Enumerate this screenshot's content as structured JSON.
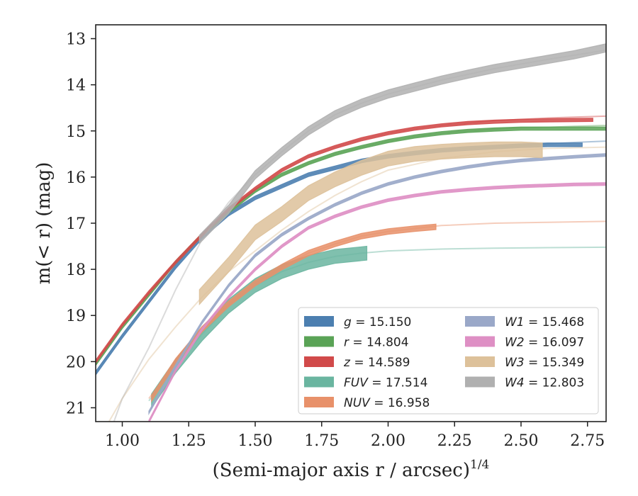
{
  "chart_data": {
    "type": "line",
    "title": "",
    "xlabel": "(Semi-major axis r / arcsec)",
    "xlabel_power": "1/4",
    "ylabel": "m(< r) (mag)",
    "xlim": [
      0.9,
      2.82
    ],
    "ylim": [
      21.3,
      12.7
    ],
    "y_inverted": true,
    "grid": false,
    "legend_position": "lower-right",
    "x_ticks": [
      "1.00",
      "1.25",
      "1.50",
      "1.75",
      "2.00",
      "2.25",
      "2.50",
      "2.75"
    ],
    "y_ticks": [
      "13",
      "14",
      "15",
      "16",
      "17",
      "18",
      "19",
      "20",
      "21"
    ],
    "series": [
      {
        "name": "g = 15.150",
        "legend_name": "g",
        "legend_value": "= 15.150",
        "color": "#4c7fb0",
        "fit_x": [
          0.9,
          1.0,
          1.1,
          1.2,
          1.3,
          1.4,
          1.5,
          1.6,
          1.7,
          1.8,
          1.9,
          2.0,
          2.1,
          2.2,
          2.3,
          2.4,
          2.5,
          2.6,
          2.7,
          2.82
        ],
        "fit_y": [
          20.25,
          19.45,
          18.7,
          17.95,
          17.3,
          16.8,
          16.45,
          16.2,
          15.95,
          15.8,
          15.65,
          15.55,
          15.48,
          15.42,
          15.38,
          15.35,
          15.32,
          15.28,
          15.25,
          15.22
        ],
        "data_x": [
          0.9,
          1.0,
          1.1,
          1.2,
          1.3,
          1.4,
          1.5,
          1.6,
          1.7,
          1.8,
          1.9,
          2.0,
          2.1,
          2.2,
          2.3,
          2.4,
          2.5,
          2.6,
          2.73
        ],
        "data_y": [
          20.25,
          19.45,
          18.7,
          17.95,
          17.3,
          16.8,
          16.45,
          16.2,
          15.95,
          15.8,
          15.65,
          15.55,
          15.48,
          15.42,
          15.38,
          15.35,
          15.32,
          15.3,
          15.3
        ],
        "band_width": 0.08
      },
      {
        "name": "r = 14.804",
        "legend_name": "r",
        "legend_value": "= 14.804",
        "color": "#5aa356",
        "fit_x": [
          0.9,
          1.0,
          1.1,
          1.2,
          1.3,
          1.4,
          1.5,
          1.6,
          1.7,
          1.8,
          1.9,
          2.0,
          2.1,
          2.2,
          2.3,
          2.4,
          2.5,
          2.6,
          2.7,
          2.82
        ],
        "fit_y": [
          20.05,
          19.25,
          18.55,
          17.85,
          17.25,
          16.75,
          16.3,
          15.95,
          15.7,
          15.5,
          15.35,
          15.22,
          15.12,
          15.05,
          15.0,
          14.96,
          14.93,
          14.92,
          14.9,
          14.88
        ],
        "data_x": [
          0.9,
          1.0,
          1.1,
          1.2,
          1.3,
          1.4,
          1.5,
          1.6,
          1.7,
          1.8,
          1.9,
          2.0,
          2.1,
          2.2,
          2.3,
          2.4,
          2.5,
          2.6,
          2.7,
          2.82
        ],
        "data_y": [
          20.05,
          19.25,
          18.55,
          17.85,
          17.25,
          16.75,
          16.3,
          15.95,
          15.7,
          15.5,
          15.35,
          15.22,
          15.12,
          15.05,
          15.0,
          14.97,
          14.95,
          14.95,
          14.95,
          14.95
        ],
        "band_width": 0.07
      },
      {
        "name": "z = 14.589",
        "legend_name": "z",
        "legend_value": "= 14.589",
        "color": "#d14a4a",
        "fit_x": [
          0.9,
          1.0,
          1.1,
          1.2,
          1.3,
          1.4,
          1.5,
          1.6,
          1.7,
          1.8,
          1.9,
          2.0,
          2.1,
          2.2,
          2.3,
          2.4,
          2.5,
          2.6,
          2.7,
          2.82
        ],
        "fit_y": [
          20.0,
          19.2,
          18.5,
          17.85,
          17.25,
          16.7,
          16.25,
          15.85,
          15.55,
          15.35,
          15.18,
          15.05,
          14.95,
          14.88,
          14.83,
          14.78,
          14.75,
          14.72,
          14.7,
          14.68
        ],
        "data_x": [
          0.9,
          1.0,
          1.1,
          1.2,
          1.3,
          1.4,
          1.5,
          1.6,
          1.7,
          1.8,
          1.9,
          2.0,
          2.1,
          2.2,
          2.3,
          2.4,
          2.5,
          2.6,
          2.77
        ],
        "data_y": [
          20.0,
          19.2,
          18.5,
          17.85,
          17.25,
          16.7,
          16.25,
          15.85,
          15.55,
          15.35,
          15.18,
          15.05,
          14.95,
          14.88,
          14.83,
          14.8,
          14.78,
          14.77,
          14.76
        ],
        "band_width": 0.07
      },
      {
        "name": "FUV = 17.514",
        "legend_name": "FUV",
        "legend_value": "= 17.514",
        "color": "#6ab5a0",
        "fit_x": [
          1.1,
          1.2,
          1.3,
          1.4,
          1.5,
          1.6,
          1.7,
          1.8,
          1.9,
          2.0,
          2.2,
          2.4,
          2.6,
          2.82
        ],
        "fit_y": [
          20.85,
          20.1,
          19.4,
          18.8,
          18.35,
          18.05,
          17.85,
          17.72,
          17.65,
          17.6,
          17.56,
          17.54,
          17.53,
          17.52
        ],
        "data_x": [
          1.11,
          1.2,
          1.3,
          1.4,
          1.5,
          1.6,
          1.7,
          1.8,
          1.92
        ],
        "data_y": [
          20.85,
          20.1,
          19.4,
          18.8,
          18.35,
          18.05,
          17.85,
          17.72,
          17.65
        ],
        "band_width": 0.3
      },
      {
        "name": "NUV = 16.958",
        "legend_name": "NUV",
        "legend_value": "= 16.958",
        "color": "#e8916a",
        "fit_x": [
          1.1,
          1.2,
          1.3,
          1.4,
          1.5,
          1.6,
          1.7,
          1.8,
          1.9,
          2.0,
          2.2,
          2.4,
          2.6,
          2.82
        ],
        "fit_y": [
          20.8,
          20.0,
          19.3,
          18.75,
          18.3,
          17.95,
          17.65,
          17.45,
          17.28,
          17.18,
          17.05,
          17.0,
          16.98,
          16.96
        ],
        "data_x": [
          1.11,
          1.2,
          1.3,
          1.4,
          1.5,
          1.6,
          1.7,
          1.8,
          1.9,
          2.0,
          2.1,
          2.18
        ],
        "data_y": [
          20.8,
          20.0,
          19.3,
          18.75,
          18.3,
          17.95,
          17.65,
          17.45,
          17.28,
          17.18,
          17.12,
          17.08
        ],
        "band_width": 0.12
      },
      {
        "name": "W1 = 15.468",
        "legend_name": "W1",
        "legend_value": "= 15.468",
        "color": "#9aa8c8",
        "fit_x": [
          1.1,
          1.2,
          1.3,
          1.4,
          1.5,
          1.6,
          1.7,
          1.8,
          1.9,
          2.0,
          2.1,
          2.2,
          2.3,
          2.4,
          2.5,
          2.6,
          2.7,
          2.82
        ],
        "fit_y": [
          21.1,
          20.1,
          19.15,
          18.35,
          17.7,
          17.25,
          16.9,
          16.6,
          16.35,
          16.15,
          16.0,
          15.88,
          15.78,
          15.7,
          15.64,
          15.6,
          15.56,
          15.52
        ],
        "data_x": [
          1.1,
          1.2,
          1.3,
          1.4,
          1.5,
          1.6,
          1.7,
          1.8,
          1.9,
          2.0,
          2.1,
          2.2,
          2.3,
          2.4,
          2.5,
          2.6,
          2.7,
          2.82
        ],
        "data_y": [
          21.1,
          20.1,
          19.15,
          18.35,
          17.7,
          17.25,
          16.9,
          16.6,
          16.35,
          16.15,
          16.0,
          15.88,
          15.78,
          15.7,
          15.64,
          15.6,
          15.56,
          15.52
        ],
        "band_width": 0.06
      },
      {
        "name": "W2 = 16.097",
        "legend_name": "W2",
        "legend_value": "= 16.097",
        "color": "#de8fc4",
        "fit_x": [
          1.1,
          1.2,
          1.3,
          1.4,
          1.5,
          1.6,
          1.7,
          1.8,
          1.9,
          2.0,
          2.1,
          2.2,
          2.3,
          2.4,
          2.5,
          2.6,
          2.7,
          2.82
        ],
        "fit_y": [
          21.3,
          20.2,
          19.3,
          18.6,
          18.0,
          17.5,
          17.1,
          16.85,
          16.65,
          16.5,
          16.4,
          16.32,
          16.27,
          16.23,
          16.2,
          16.18,
          16.16,
          16.15
        ],
        "data_x": [
          1.1,
          1.2,
          1.3,
          1.4,
          1.5,
          1.6,
          1.7,
          1.8,
          1.9,
          2.0,
          2.1,
          2.2,
          2.3,
          2.4,
          2.5,
          2.6,
          2.7,
          2.82
        ],
        "data_y": [
          21.3,
          20.2,
          19.3,
          18.6,
          18.0,
          17.5,
          17.1,
          16.85,
          16.65,
          16.5,
          16.4,
          16.32,
          16.27,
          16.23,
          16.2,
          16.18,
          16.16,
          16.15
        ],
        "band_width": 0.06
      },
      {
        "name": "W3 = 15.349",
        "legend_name": "W3",
        "legend_value": "= 15.349",
        "color": "#ddc19a",
        "fit_x": [
          0.9,
          1.0,
          1.1,
          1.2,
          1.3,
          1.4,
          1.5,
          1.6,
          1.7,
          1.8,
          1.9,
          2.0,
          2.2,
          2.4,
          2.6,
          2.82
        ],
        "fit_y": [
          21.8,
          20.8,
          19.95,
          19.25,
          18.6,
          18.05,
          17.6,
          17.15,
          16.75,
          16.4,
          16.1,
          15.85,
          15.6,
          15.45,
          15.38,
          15.35
        ],
        "data_x": [
          1.29,
          1.4,
          1.5,
          1.6,
          1.7,
          1.8,
          1.9,
          2.0,
          2.1,
          2.2,
          2.3,
          2.4,
          2.5,
          2.58
        ],
        "data_y": [
          18.6,
          17.9,
          17.2,
          16.8,
          16.35,
          16.05,
          15.8,
          15.6,
          15.5,
          15.45,
          15.42,
          15.4,
          15.4,
          15.42
        ],
        "band_width": 0.32
      },
      {
        "name": "W4 = 12.803",
        "legend_name": "W4",
        "legend_value": "= 12.803",
        "color": "#b0b0b0",
        "fit_x": [
          0.95,
          1.0,
          1.1,
          1.2,
          1.3,
          1.4,
          1.5,
          1.6,
          1.7,
          1.8,
          1.9,
          2.0,
          2.2,
          2.4,
          2.6,
          2.82
        ],
        "fit_y": [
          21.6,
          20.8,
          19.7,
          18.45,
          17.35,
          16.55,
          15.95,
          15.45,
          15.0,
          14.65,
          14.4,
          14.2,
          13.9,
          13.65,
          13.45,
          13.25
        ],
        "data_x": [
          1.29,
          1.4,
          1.5,
          1.6,
          1.7,
          1.8,
          1.9,
          2.0,
          2.1,
          2.2,
          2.3,
          2.4,
          2.5,
          2.6,
          2.7,
          2.82
        ],
        "data_y": [
          17.35,
          16.7,
          15.95,
          15.45,
          15.0,
          14.65,
          14.4,
          14.2,
          14.05,
          13.9,
          13.77,
          13.65,
          13.55,
          13.45,
          13.35,
          13.2
        ],
        "band_width": 0.18
      }
    ]
  }
}
